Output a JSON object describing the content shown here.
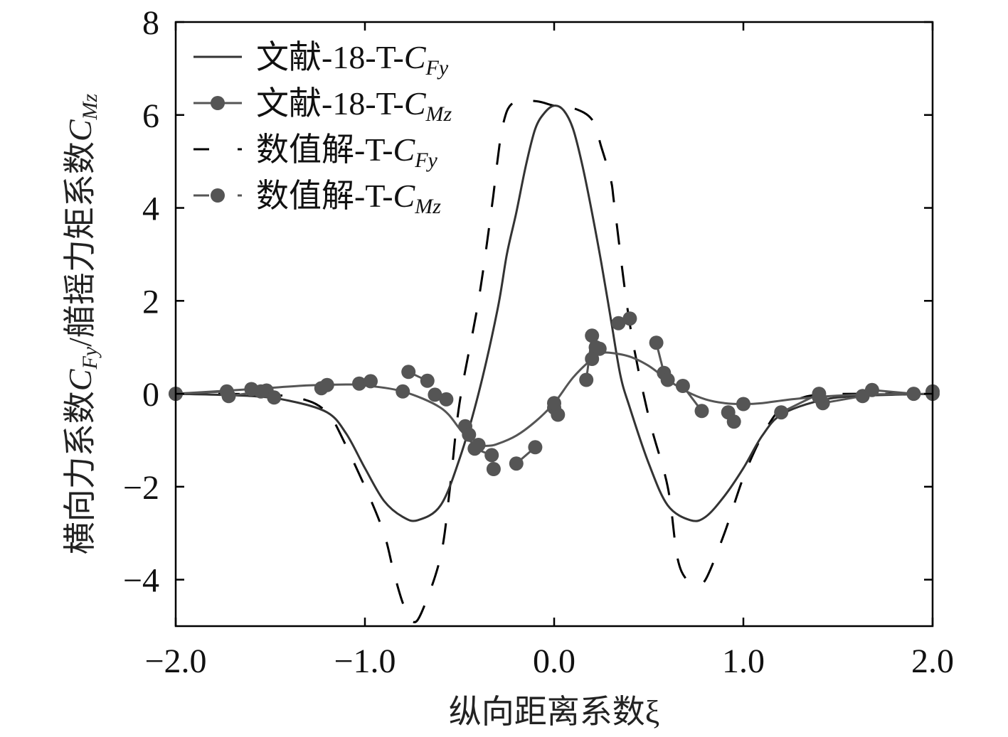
{
  "chart_data": {
    "type": "line",
    "title": "",
    "xlabel": "纵向距离系数ξ",
    "ylabel": "横向力系数C_Fy/艏摇力矩系数C_Mz",
    "xlim": [
      -2.0,
      2.0
    ],
    "ylim": [
      -5,
      8
    ],
    "xticks": [
      -2.0,
      -1.0,
      0.0,
      1.0,
      2.0
    ],
    "xtick_labels": [
      "−2.0",
      "−1.0",
      "0.0",
      "1.0",
      "2.0"
    ],
    "yticks": [
      -4,
      -2,
      0,
      2,
      4,
      6,
      8
    ],
    "ytick_labels": [
      "−4",
      "−2",
      "0",
      "2",
      "4",
      "6",
      "8"
    ],
    "legend_position": "top-left",
    "colors": {
      "fy": "#333333",
      "mz": "#555555",
      "dash": "#000000"
    },
    "series": [
      {
        "name": "文献-18-T-C_Fy",
        "label_parts": {
          "prefix": "文献-18-T-",
          "main": "C",
          "sub": "Fy"
        },
        "style": "solid",
        "marker": "none",
        "x": [
          -2.0,
          -1.6,
          -1.4,
          -1.2,
          -1.1,
          -1.0,
          -0.9,
          -0.8,
          -0.72,
          -0.6,
          -0.5,
          -0.4,
          -0.3,
          -0.25,
          -0.2,
          -0.15,
          -0.1,
          -0.05,
          0.0,
          0.05,
          0.1,
          0.15,
          0.2,
          0.25,
          0.3,
          0.35,
          0.4,
          0.5,
          0.6,
          0.72,
          0.8,
          0.9,
          1.0,
          1.1,
          1.2,
          1.4,
          1.6,
          2.0
        ],
        "y": [
          0.0,
          -0.05,
          -0.15,
          -0.4,
          -0.85,
          -1.6,
          -2.3,
          -2.65,
          -2.72,
          -2.4,
          -1.4,
          0.0,
          1.8,
          3.0,
          3.9,
          4.9,
          5.7,
          6.05,
          6.2,
          6.1,
          5.7,
          4.9,
          3.9,
          2.8,
          1.6,
          0.4,
          -0.3,
          -1.5,
          -2.4,
          -2.72,
          -2.65,
          -2.2,
          -1.6,
          -0.9,
          -0.45,
          -0.15,
          -0.05,
          0.0
        ]
      },
      {
        "name": "文献-18-T-C_Mz",
        "label_parts": {
          "prefix": "文献-18-T-",
          "main": "C",
          "sub": "Mz"
        },
        "style": "solid",
        "marker": "circle",
        "x": [
          -2.0,
          -1.6,
          -1.3,
          -1.1,
          -1.0,
          -0.8,
          -0.6,
          -0.5,
          -0.45,
          -0.4,
          -0.35,
          -0.3,
          -0.2,
          -0.1,
          0.0,
          0.1,
          0.2,
          0.25,
          0.3,
          0.4,
          0.5,
          0.6,
          0.7,
          0.8,
          0.9,
          1.0,
          1.1,
          1.3,
          1.6,
          2.0
        ],
        "y": [
          0.0,
          0.1,
          0.18,
          0.2,
          0.18,
          0.05,
          -0.3,
          -0.75,
          -1.0,
          -1.1,
          -1.12,
          -1.08,
          -0.9,
          -0.6,
          -0.2,
          0.35,
          0.75,
          0.87,
          0.88,
          0.8,
          0.6,
          0.3,
          0.05,
          -0.12,
          -0.2,
          -0.22,
          -0.2,
          -0.1,
          -0.02,
          0.0
        ],
        "marker_x": [
          -2.0,
          -1.6,
          -1.2,
          -0.8,
          -0.4,
          0.0,
          0.2,
          0.6,
          1.0,
          1.4,
          2.0
        ]
      },
      {
        "name": "数值解-T-C_Fy",
        "label_parts": {
          "prefix": "数值解-T-",
          "main": "C",
          "sub": "Fy"
        },
        "style": "dashed",
        "marker": "none",
        "x": [
          -2.0,
          -1.5,
          -1.3,
          -1.2,
          -1.15,
          -1.0,
          -0.9,
          -0.85,
          -0.8,
          -0.75,
          -0.7,
          -0.6,
          -0.55,
          -0.5,
          -0.4,
          -0.33,
          -0.3,
          -0.27,
          -0.22,
          -0.1,
          0.0,
          0.1,
          0.2,
          0.25,
          0.3,
          0.32,
          0.4,
          0.5,
          0.6,
          0.65,
          0.7,
          0.75,
          0.8,
          0.9,
          1.0,
          1.1,
          1.2,
          1.3,
          1.4,
          1.6,
          2.0
        ],
        "y": [
          0.0,
          -0.02,
          -0.15,
          -0.4,
          -0.7,
          -2.0,
          -3.0,
          -3.8,
          -4.5,
          -4.9,
          -4.7,
          -3.5,
          -2.0,
          -0.2,
          2.0,
          4.0,
          5.0,
          5.8,
          6.25,
          6.3,
          6.2,
          6.15,
          5.9,
          5.3,
          4.6,
          4.0,
          1.5,
          -0.5,
          -2.0,
          -3.5,
          -4.0,
          -4.05,
          -4.0,
          -3.0,
          -1.8,
          -0.9,
          -0.3,
          -0.1,
          -0.02,
          0.0,
          0.0
        ]
      },
      {
        "name": "数值解-T-C_Mz",
        "label_parts": {
          "prefix": "数值解-T-",
          "main": "C",
          "sub": "Mz"
        },
        "style": "dashed",
        "marker": "circle",
        "segments": [
          [
            [
              -2.0,
              0.0
            ],
            [
              -1.73,
              0.05
            ]
          ],
          [
            [
              -1.72,
              -0.05
            ],
            [
              -1.55,
              0.05
            ]
          ],
          [
            [
              -1.52,
              0.07
            ],
            [
              -1.48,
              -0.08
            ]
          ],
          [
            [
              -1.23,
              0.12
            ]
          ],
          [
            [
              -1.03,
              0.22
            ],
            [
              -0.97,
              0.27
            ]
          ],
          [
            [
              -0.77,
              0.47
            ],
            [
              -0.67,
              0.28
            ]
          ],
          [
            [
              -0.63,
              -0.02
            ],
            [
              -0.57,
              -0.12
            ]
          ],
          [
            [
              -0.47,
              -0.7
            ],
            [
              -0.45,
              -0.88
            ]
          ],
          [
            [
              -0.42,
              -1.18
            ],
            [
              -0.33,
              -1.32
            ]
          ],
          [
            [
              -0.32,
              -1.62
            ]
          ],
          [
            [
              -0.2,
              -1.5
            ],
            [
              -0.1,
              -1.15
            ]
          ],
          [
            [
              0.0,
              -0.3
            ],
            [
              0.02,
              -0.45
            ]
          ],
          [
            [
              0.17,
              0.3
            ],
            [
              0.2,
              1.25
            ]
          ],
          [
            [
              0.24,
              0.97
            ],
            [
              0.22,
              1.0
            ]
          ],
          [
            [
              0.34,
              1.52
            ],
            [
              0.4,
              1.62
            ]
          ],
          [
            [
              0.54,
              1.1
            ],
            [
              0.58,
              0.45
            ]
          ],
          [
            [
              0.68,
              0.17
            ],
            [
              0.78,
              -0.37
            ]
          ],
          [
            [
              0.92,
              -0.4
            ],
            [
              0.95,
              -0.6
            ]
          ],
          [
            [
              1.2,
              -0.4
            ],
            [
              1.4,
              0.0
            ]
          ],
          [
            [
              1.42,
              -0.2
            ],
            [
              1.63,
              -0.05
            ]
          ],
          [
            [
              1.68,
              0.08
            ],
            [
              1.9,
              0.0
            ]
          ],
          [
            [
              2.0,
              0.05
            ]
          ]
        ]
      }
    ]
  }
}
